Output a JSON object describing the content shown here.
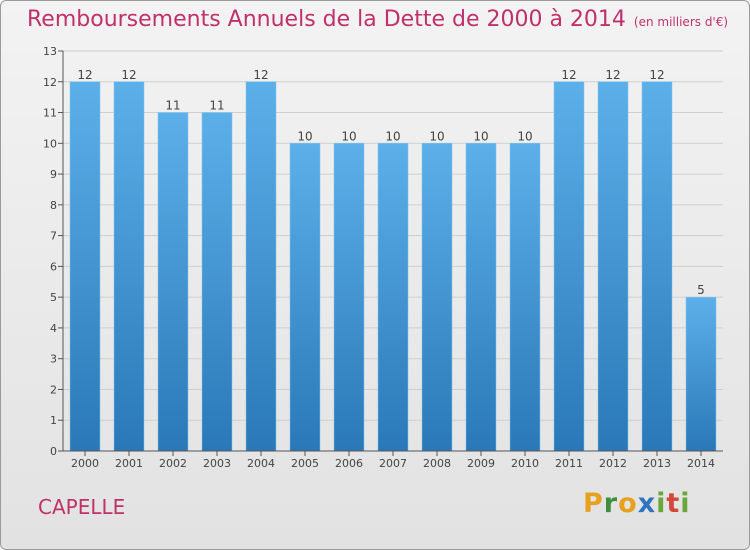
{
  "page": {
    "title": "Remboursements Annuels de la Dette de 2000 à 2014",
    "subtitle": "(en milliers d'€)",
    "commune": "CAPELLE",
    "logo": {
      "letters": [
        "P",
        "r",
        "o",
        "x",
        "i",
        "t",
        "i"
      ],
      "colors": [
        "#e6a21f",
        "#3f8f3a",
        "#e6a21f",
        "#2f74c0",
        "#6aa73a",
        "#d4473c",
        "#6aa73a"
      ]
    }
  },
  "colors": {
    "bar_top": "#5cb0e9",
    "bar_bottom": "#2a78b8",
    "axis": "#555555",
    "grid": "#cfcfcf"
  },
  "chart_data": {
    "type": "bar",
    "title": "Remboursements Annuels de la Dette de 2000 à 2014",
    "xlabel": "",
    "ylabel": "",
    "ylim": [
      0,
      13
    ],
    "yticks": [
      0,
      1,
      2,
      3,
      4,
      5,
      6,
      7,
      8,
      9,
      10,
      11,
      12,
      13
    ],
    "grid": true,
    "categories": [
      "2000",
      "2001",
      "2002",
      "2003",
      "2004",
      "2005",
      "2006",
      "2007",
      "2008",
      "2009",
      "2010",
      "2011",
      "2012",
      "2013",
      "2014"
    ],
    "values": [
      12,
      12,
      11,
      11,
      12,
      10,
      10,
      10,
      10,
      10,
      10,
      12,
      12,
      12,
      5
    ]
  }
}
